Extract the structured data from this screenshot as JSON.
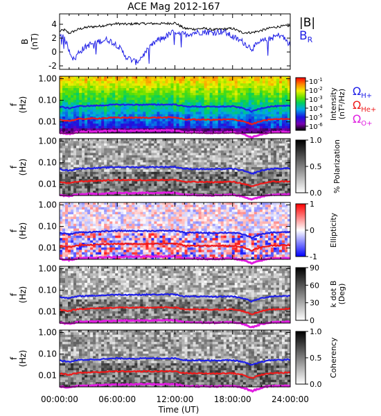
{
  "title": "ACE Mag 2012-167",
  "time_axis": {
    "label": "Time (UT)",
    "ticks": [
      "00:00:00",
      "06:00:00",
      "12:00:00",
      "18:00:00",
      "24:00:00"
    ],
    "range_hours": [
      0,
      24
    ]
  },
  "colors": {
    "b_total": "#000000",
    "b_r": "#1f1fe6",
    "omega_h": "#1e1ee8",
    "omega_he": "#ee1a1a",
    "omega_o": "#e01de0"
  },
  "panels": {
    "bfield": {
      "ylabel_1": "B",
      "ylabel_2": "(nT)",
      "legend_total": "|B|",
      "legend_br": "B",
      "legend_br_sub": "R"
    },
    "intensity": {
      "ylabel_1": "f",
      "ylabel_2": "(Hz)",
      "cbar_label_1": "Intensity",
      "cbar_label_2": "(nT²/Hz)",
      "cbar_ticks": [
        {
          "base": "10",
          "exp": "-1"
        },
        {
          "base": "10",
          "exp": "-2"
        },
        {
          "base": "10",
          "exp": "-3"
        },
        {
          "base": "10",
          "exp": "-4"
        },
        {
          "base": "10",
          "exp": "-5"
        },
        {
          "base": "10",
          "exp": "-6"
        }
      ],
      "gyro_legend": [
        {
          "sym": "Ω",
          "sub": "H+"
        },
        {
          "sym": "Ω",
          "sub": "He+"
        },
        {
          "sym": "Ω",
          "sub": "O+"
        }
      ]
    },
    "polarization": {
      "ylabel_1": "f",
      "ylabel_2": "(Hz)",
      "cbar_label": "% Polarization",
      "cbar_ticks": [
        "1.0",
        "0.5",
        "0.0"
      ]
    },
    "ellipticity": {
      "ylabel_1": "f",
      "ylabel_2": "(Hz)",
      "cbar_label": "Ellipticity",
      "cbar_ticks": [
        "1",
        "0",
        "-1"
      ]
    },
    "kdotb": {
      "ylabel_1": "f",
      "ylabel_2": "(Hz)",
      "cbar_label_1": "k dot B",
      "cbar_label_2": "(Deg)",
      "cbar_ticks": [
        "90",
        "60",
        "30",
        "0"
      ]
    },
    "coherency": {
      "ylabel_1": "f",
      "ylabel_2": "(Hz)",
      "cbar_label": "Coherency",
      "cbar_ticks": [
        "1.0",
        "0.5",
        "0.0"
      ]
    }
  },
  "chart_data": {
    "type": "line",
    "title": "ACE Mag 2012-167",
    "xlabel": "Time (UT)",
    "x_ticks": [
      "00:00:00",
      "06:00:00",
      "12:00:00",
      "18:00:00",
      "24:00:00"
    ],
    "bfield_panel": {
      "ylabel": "B (nT)",
      "ylim": [
        -2.5,
        5.5
      ],
      "yticks": [
        "-2",
        "0",
        "2",
        "4"
      ],
      "series": [
        {
          "name": "|B|",
          "x_hours": [
            0,
            0.5,
            1,
            2,
            3,
            4,
            5,
            6,
            7,
            8,
            9,
            10,
            11,
            12,
            13,
            14,
            15,
            16,
            17,
            18,
            19,
            20,
            21,
            22,
            23,
            24
          ],
          "values": [
            3.0,
            3.2,
            2.7,
            3.3,
            3.6,
            3.7,
            3.9,
            4.1,
            4.0,
            4.1,
            4.1,
            4.1,
            4.1,
            4.2,
            3.4,
            3.3,
            3.4,
            3.2,
            3.3,
            3.4,
            2.8,
            2.8,
            3.1,
            3.5,
            3.7,
            3.8
          ]
        },
        {
          "name": "B",
          "x_hours": [
            0,
            0.5,
            1,
            1.5,
            2,
            3,
            4,
            5,
            6,
            7,
            8,
            9,
            10,
            11,
            12,
            13,
            14,
            15,
            16,
            17,
            18,
            19,
            20,
            21,
            22,
            23,
            24
          ],
          "values": [
            2.5,
            2.0,
            0.3,
            -1.2,
            0.0,
            1.0,
            1.5,
            1.8,
            1.0,
            -0.8,
            -1.5,
            0.0,
            1.5,
            2.2,
            3.0,
            2.5,
            2.8,
            2.9,
            2.8,
            3.0,
            2.2,
            1.5,
            0.5,
            1.5,
            2.0,
            2.5,
            1.0
          ]
        }
      ]
    },
    "spectrogram_panels": [
      "Intensity (nT²/Hz)",
      "% Polarization",
      "Ellipticity",
      "k dot B (Deg)",
      "Coherency"
    ],
    "spectrogram_yaxis": {
      "ylabel": "f (Hz)",
      "scale": "log",
      "ylim": [
        0.003,
        1.3
      ],
      "yticks": [
        "1.00",
        "0.10",
        "0.01"
      ]
    },
    "gyrofrequencies": [
      {
        "name": "Ω_H+",
        "x_hours": [
          0,
          1,
          2,
          4,
          6,
          8,
          10,
          12,
          13,
          16,
          18,
          19,
          20,
          21,
          22,
          24
        ],
        "values_hz": [
          0.05,
          0.043,
          0.053,
          0.057,
          0.063,
          0.062,
          0.063,
          0.064,
          0.052,
          0.05,
          0.052,
          0.044,
          0.03,
          0.043,
          0.052,
          0.055
        ]
      },
      {
        "name": "Ω_He+",
        "x_hours": [
          0,
          1,
          2,
          4,
          6,
          8,
          10,
          12,
          13,
          16,
          18,
          19,
          20,
          21,
          22,
          24
        ],
        "values_hz": [
          0.0125,
          0.011,
          0.0135,
          0.0145,
          0.0158,
          0.0155,
          0.0158,
          0.016,
          0.013,
          0.0125,
          0.013,
          0.011,
          0.0076,
          0.0108,
          0.013,
          0.0138
        ]
      },
      {
        "name": "Ω_O+",
        "x_hours": [
          0,
          1,
          2,
          4,
          6,
          8,
          10,
          12,
          13,
          16,
          18,
          19,
          20,
          21,
          22,
          24
        ],
        "values_hz": [
          0.0031,
          0.0028,
          0.0034,
          0.0036,
          0.0039,
          0.0039,
          0.004,
          0.004,
          0.0033,
          0.0031,
          0.0033,
          0.0028,
          0.0019,
          0.0027,
          0.0033,
          0.0034
        ]
      }
    ]
  }
}
